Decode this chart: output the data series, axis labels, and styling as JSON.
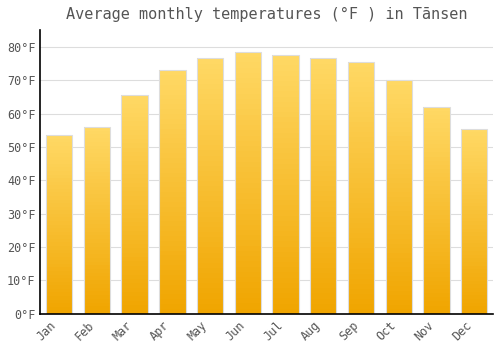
{
  "title": "Average monthly temperatures (°F ) in Tānsen",
  "months": [
    "Jan",
    "Feb",
    "Mar",
    "Apr",
    "May",
    "Jun",
    "Jul",
    "Aug",
    "Sep",
    "Oct",
    "Nov",
    "Dec"
  ],
  "values": [
    53.5,
    56.0,
    65.5,
    73.0,
    76.5,
    78.5,
    77.5,
    76.5,
    75.5,
    70.0,
    62.0,
    55.5
  ],
  "bar_color_top": "#FFD966",
  "bar_color_bottom": "#F0A500",
  "bar_edge_color": "#DDDDDD",
  "background_color": "#FFFFFF",
  "grid_color": "#DDDDDD",
  "text_color": "#555555",
  "axis_color": "#000000",
  "ylim": [
    0,
    85
  ],
  "yticks": [
    0,
    10,
    20,
    30,
    40,
    50,
    60,
    70,
    80
  ],
  "title_fontsize": 11,
  "tick_fontsize": 8.5,
  "bar_width": 0.7
}
